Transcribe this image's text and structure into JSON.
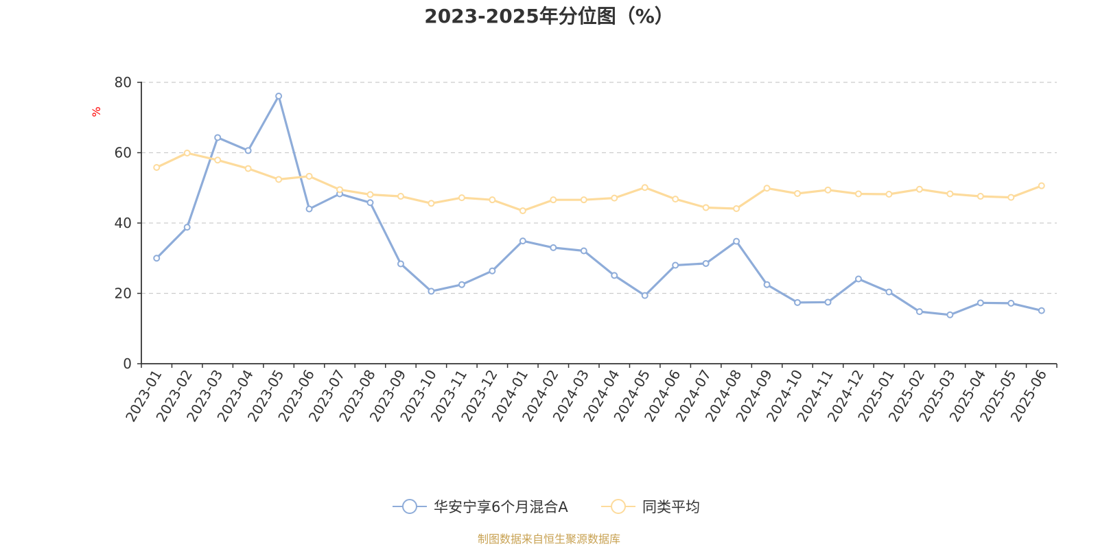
{
  "chart_data": {
    "type": "line",
    "title": "2023-2025年分位图（%）",
    "y_unit": "%",
    "ylim": [
      0,
      80
    ],
    "y_ticks": [
      0,
      20,
      40,
      60,
      80
    ],
    "grid": "horizontal dashed",
    "legend_position": "bottom-center",
    "categories": [
      "2023-01",
      "2023-02",
      "2023-03",
      "2023-04",
      "2023-05",
      "2023-06",
      "2023-07",
      "2023-08",
      "2023-09",
      "2023-10",
      "2023-11",
      "2023-12",
      "2024-01",
      "2024-02",
      "2024-03",
      "2024-04",
      "2024-05",
      "2024-06",
      "2024-07",
      "2024-08",
      "2024-09",
      "2024-10",
      "2024-11",
      "2024-12",
      "2025-01",
      "2025-02",
      "2025-03",
      "2025-04",
      "2025-05",
      "2025-06"
    ],
    "series": [
      {
        "name": "华安宁享6个月混合A",
        "color": "#8eacd9",
        "values": [
          30.0,
          38.8,
          64.3,
          60.6,
          76.1,
          44.0,
          48.3,
          45.8,
          28.4,
          20.6,
          22.5,
          26.4,
          34.9,
          33.0,
          32.1,
          25.1,
          19.4,
          28.0,
          28.5,
          34.8,
          22.5,
          17.4,
          17.5,
          24.1,
          20.4,
          14.8,
          13.9,
          17.3,
          17.2,
          15.1
        ]
      },
      {
        "name": "同类平均",
        "color": "#fddb9c",
        "values": [
          55.8,
          59.9,
          57.9,
          55.5,
          52.4,
          53.3,
          49.5,
          48.1,
          47.6,
          45.6,
          47.2,
          46.6,
          43.5,
          46.6,
          46.6,
          47.1,
          50.1,
          46.8,
          44.4,
          44.1,
          49.9,
          48.4,
          49.4,
          48.3,
          48.2,
          49.6,
          48.3,
          47.6,
          47.3,
          50.6
        ]
      }
    ]
  },
  "source_text": "制图数据来自恒生聚源数据库",
  "colors": {
    "axis": "#333333",
    "grid": "#cccccc",
    "unit": "#ff0000",
    "source": "#c8a253"
  }
}
